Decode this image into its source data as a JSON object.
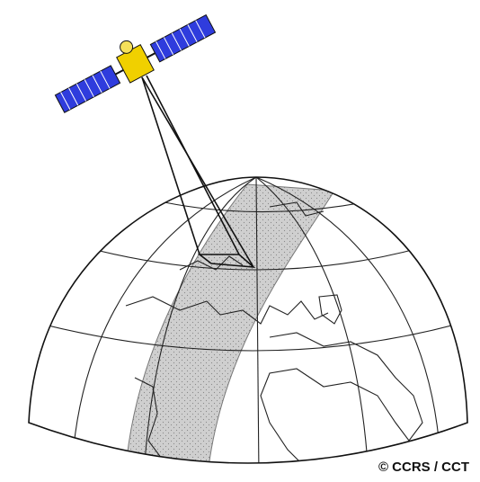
{
  "credit": "© CCRS / CCT"
}
